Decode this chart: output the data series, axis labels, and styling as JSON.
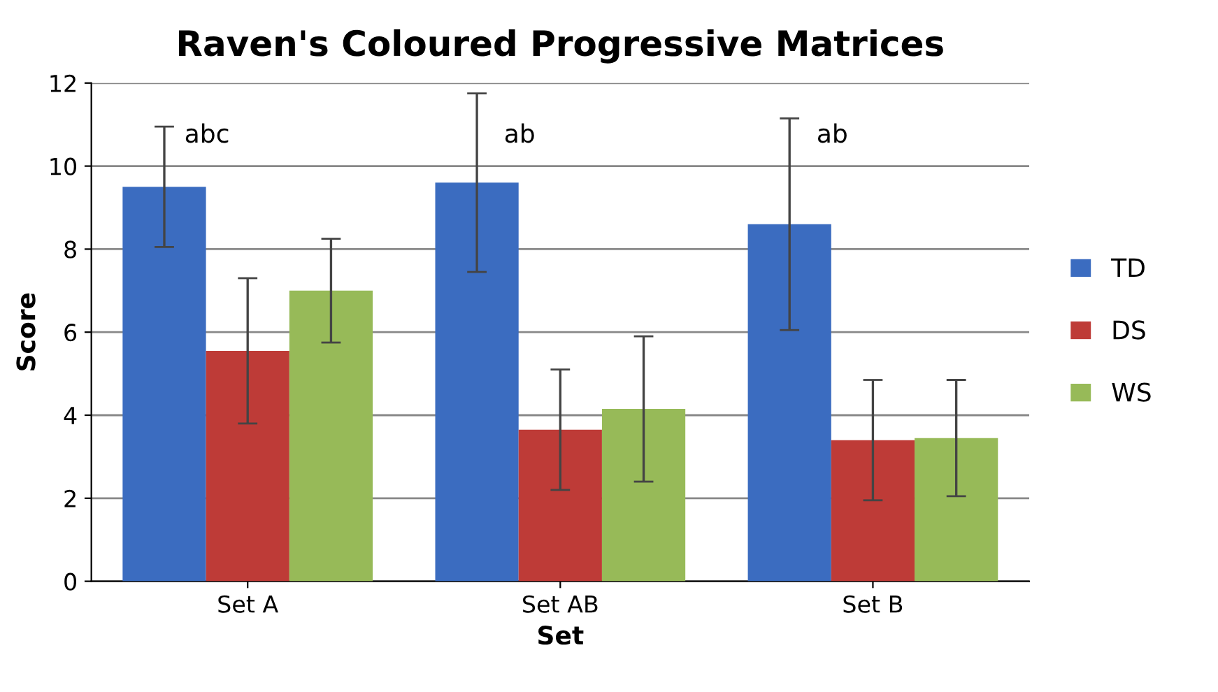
{
  "chart_data": {
    "type": "bar",
    "title": "Raven's Coloured Progressive Matrices",
    "xlabel": "Set",
    "ylabel": "Score",
    "categories": [
      "Set A",
      "Set AB",
      "Set B"
    ],
    "series": [
      {
        "name": "TD",
        "color": "#3b6cc0",
        "values": [
          9.5,
          9.6,
          8.6
        ],
        "errors": [
          1.45,
          2.15,
          2.55
        ]
      },
      {
        "name": "DS",
        "color": "#be3b37",
        "values": [
          5.55,
          3.65,
          3.4
        ],
        "errors": [
          1.75,
          1.45,
          1.45
        ]
      },
      {
        "name": "WS",
        "color": "#97ba58",
        "values": [
          7.0,
          4.15,
          3.45
        ],
        "errors": [
          1.25,
          1.75,
          1.4
        ]
      }
    ],
    "annotations": [
      "abc",
      "ab",
      "ab"
    ],
    "ylim": [
      0,
      12
    ],
    "yticks": [
      0,
      2,
      4,
      6,
      8,
      10,
      12
    ],
    "grid": "y",
    "legend": "right"
  }
}
